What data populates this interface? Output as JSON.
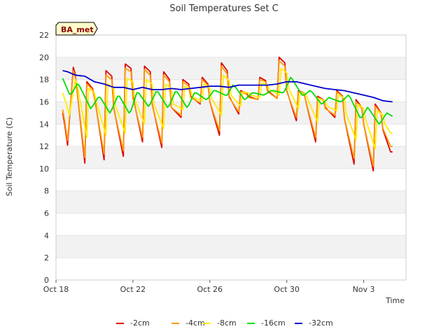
{
  "chart_data": {
    "type": "line",
    "title": "Soil Temperatures Set C",
    "xlabel": "Time",
    "ylabel": "Soil Temperature (C)",
    "badge": "BA_met",
    "ylim": [
      0,
      22
    ],
    "yticks": [
      0,
      2,
      4,
      6,
      8,
      10,
      12,
      14,
      16,
      18,
      20,
      22
    ],
    "xlim": [
      0,
      18.2
    ],
    "xticks": [
      {
        "value": 0,
        "label": "Oct 18"
      },
      {
        "value": 4,
        "label": "Oct 22"
      },
      {
        "value": 8,
        "label": "Oct 26"
      },
      {
        "value": 12,
        "label": "Oct 30"
      },
      {
        "value": 16,
        "label": "Nov 3"
      }
    ],
    "grid": "horizontal bands",
    "legend_position": "bottom",
    "series": [
      {
        "name": "-2cm",
        "color": "#dd0000",
        "x": [
          0.35,
          0.45,
          0.6,
          0.9,
          1.0,
          1.5,
          1.6,
          1.9,
          2.0,
          2.5,
          2.6,
          2.9,
          3.0,
          3.5,
          3.6,
          3.9,
          4.0,
          4.5,
          4.6,
          4.9,
          5.0,
          5.5,
          5.6,
          5.9,
          6.0,
          6.5,
          6.6,
          6.9,
          7.0,
          7.5,
          7.6,
          7.9,
          8.0,
          8.5,
          8.6,
          8.9,
          9.0,
          9.5,
          9.6,
          9.9,
          10.0,
          10.5,
          10.6,
          10.9,
          11.0,
          11.5,
          11.6,
          11.9,
          12.0,
          12.5,
          12.6,
          12.9,
          13.0,
          13.5,
          13.6,
          13.9,
          14.0,
          14.5,
          14.6,
          14.9,
          15.0,
          15.5,
          15.6,
          15.9,
          16.0,
          16.5,
          16.6,
          16.9,
          17.0,
          17.4,
          17.5
        ],
        "y": [
          15.0,
          14.0,
          12.1,
          19.1,
          18.5,
          10.5,
          17.8,
          17.2,
          16.5,
          10.8,
          18.8,
          18.3,
          15.5,
          11.1,
          19.4,
          19.0,
          16.5,
          12.4,
          19.2,
          18.7,
          15.8,
          11.9,
          18.7,
          18.0,
          15.5,
          14.6,
          18.0,
          17.6,
          16.5,
          15.8,
          18.2,
          17.6,
          16.0,
          13.0,
          19.5,
          18.8,
          16.5,
          14.9,
          17.0,
          16.8,
          16.5,
          16.2,
          18.2,
          17.9,
          17.0,
          16.3,
          20.0,
          19.5,
          17.0,
          14.3,
          17.0,
          16.8,
          16.0,
          12.4,
          16.5,
          16.2,
          15.5,
          14.6,
          17.0,
          16.5,
          14.5,
          10.4,
          16.2,
          15.5,
          14.0,
          9.8,
          15.8,
          15.0,
          13.5,
          11.5,
          11.5
        ]
      },
      {
        "name": "-4cm",
        "color": "#ff9900",
        "x": [
          0.35,
          0.45,
          0.6,
          0.9,
          1.0,
          1.5,
          1.6,
          1.9,
          2.0,
          2.5,
          2.6,
          2.9,
          3.0,
          3.5,
          3.6,
          3.9,
          4.0,
          4.5,
          4.6,
          4.9,
          5.0,
          5.5,
          5.6,
          5.9,
          6.0,
          6.5,
          6.6,
          6.9,
          7.0,
          7.5,
          7.6,
          7.9,
          8.0,
          8.5,
          8.6,
          8.9,
          9.0,
          9.5,
          9.6,
          9.9,
          10.0,
          10.5,
          10.6,
          10.9,
          11.0,
          11.5,
          11.6,
          11.9,
          12.0,
          12.5,
          12.6,
          12.9,
          13.0,
          13.5,
          13.6,
          13.9,
          14.0,
          14.5,
          14.6,
          14.9,
          15.0,
          15.5,
          15.6,
          15.9,
          16.0,
          16.5,
          16.6,
          16.9,
          17.0,
          17.4,
          17.5
        ],
        "y": [
          15.3,
          14.3,
          12.5,
          18.8,
          18.3,
          11.0,
          17.6,
          17.1,
          16.3,
          11.3,
          18.4,
          18.0,
          15.4,
          11.6,
          19.0,
          18.7,
          16.3,
          12.8,
          18.9,
          18.4,
          15.7,
          12.3,
          18.4,
          17.8,
          15.5,
          14.8,
          17.8,
          17.4,
          16.4,
          15.9,
          18.0,
          17.5,
          16.0,
          13.4,
          19.2,
          18.5,
          16.4,
          15.1,
          16.9,
          16.7,
          16.4,
          16.2,
          18.0,
          17.8,
          16.9,
          16.3,
          19.7,
          19.2,
          16.9,
          14.6,
          16.9,
          16.7,
          16.0,
          12.8,
          16.4,
          16.1,
          15.4,
          14.8,
          16.9,
          16.4,
          14.5,
          10.9,
          16.0,
          15.4,
          14.0,
          10.2,
          15.6,
          15.0,
          13.6,
          12.0,
          12.0
        ]
      },
      {
        "name": "-8cm",
        "color": "#ffee00",
        "x": [
          0.35,
          0.5,
          0.7,
          1.0,
          1.1,
          1.6,
          1.7,
          2.0,
          2.1,
          2.6,
          2.7,
          3.0,
          3.1,
          3.6,
          3.7,
          4.0,
          4.1,
          4.6,
          4.7,
          5.0,
          5.1,
          5.6,
          5.7,
          6.0,
          6.1,
          6.6,
          6.7,
          7.0,
          7.1,
          7.6,
          7.7,
          8.0,
          8.1,
          8.6,
          8.7,
          9.0,
          9.1,
          9.6,
          9.7,
          10.0,
          10.1,
          10.6,
          10.7,
          11.0,
          11.1,
          11.6,
          11.7,
          12.0,
          12.1,
          12.6,
          12.7,
          13.0,
          13.1,
          13.6,
          13.7,
          14.0,
          14.1,
          14.6,
          14.7,
          15.0,
          15.1,
          15.6,
          15.7,
          16.0,
          16.1,
          16.6,
          16.7,
          17.0,
          17.1,
          17.4,
          17.5
        ],
        "y": [
          16.8,
          16.0,
          14.8,
          18.0,
          17.6,
          12.8,
          17.2,
          16.8,
          16.0,
          13.0,
          17.6,
          17.2,
          15.6,
          13.2,
          18.1,
          17.8,
          16.2,
          14.0,
          18.0,
          17.6,
          15.8,
          13.6,
          17.6,
          17.2,
          15.8,
          15.3,
          17.4,
          17.1,
          16.4,
          16.1,
          17.6,
          17.2,
          16.3,
          14.8,
          18.4,
          17.9,
          16.6,
          15.6,
          16.9,
          16.8,
          16.6,
          16.4,
          17.7,
          17.5,
          17.1,
          16.6,
          19.0,
          18.6,
          17.2,
          15.4,
          16.9,
          16.7,
          16.2,
          14.2,
          16.3,
          16.1,
          15.6,
          15.2,
          16.7,
          16.3,
          14.9,
          12.6,
          15.8,
          15.4,
          14.4,
          11.8,
          15.2,
          14.8,
          14.0,
          13.2,
          13.2
        ]
      },
      {
        "name": "-16cm",
        "color": "#00dd00",
        "x": [
          0.35,
          0.7,
          0.8,
          1.1,
          1.2,
          1.8,
          1.9,
          2.2,
          2.3,
          2.8,
          2.9,
          3.2,
          3.3,
          3.8,
          3.9,
          4.2,
          4.3,
          4.8,
          4.9,
          5.2,
          5.3,
          5.8,
          5.9,
          6.2,
          6.3,
          6.8,
          6.9,
          7.2,
          7.3,
          7.8,
          7.9,
          8.2,
          8.3,
          8.8,
          8.9,
          9.2,
          9.3,
          9.8,
          9.9,
          10.2,
          10.3,
          10.8,
          10.9,
          11.2,
          11.3,
          11.8,
          11.9,
          12.2,
          12.3,
          12.8,
          12.9,
          13.2,
          13.3,
          13.8,
          13.9,
          14.2,
          14.3,
          14.8,
          14.9,
          15.2,
          15.3,
          15.8,
          15.9,
          16.2,
          16.3,
          16.8,
          16.9,
          17.2,
          17.3,
          17.5
        ],
        "y": [
          18.1,
          16.7,
          16.7,
          17.6,
          17.5,
          15.4,
          15.6,
          16.4,
          16.4,
          15.0,
          15.3,
          16.5,
          16.5,
          15.0,
          15.2,
          16.8,
          16.8,
          15.6,
          15.8,
          16.9,
          16.9,
          15.5,
          15.7,
          16.9,
          16.9,
          15.5,
          15.7,
          16.8,
          16.8,
          16.2,
          16.3,
          17.0,
          17.0,
          16.6,
          16.6,
          17.5,
          17.4,
          16.2,
          16.3,
          16.8,
          16.8,
          16.6,
          16.7,
          17.0,
          17.0,
          16.8,
          17.0,
          18.2,
          18.0,
          16.6,
          16.6,
          17.0,
          16.9,
          15.8,
          15.9,
          16.4,
          16.3,
          16.0,
          16.1,
          16.6,
          16.4,
          14.6,
          14.6,
          15.5,
          15.3,
          14.0,
          14.2,
          15.0,
          14.9,
          14.7
        ]
      },
      {
        "name": "-32cm",
        "color": "#0000cc",
        "x": [
          0.35,
          0.6,
          1.0,
          1.5,
          2.0,
          2.5,
          3.0,
          3.5,
          4.0,
          4.5,
          5.0,
          5.5,
          6.0,
          6.5,
          7.0,
          7.5,
          8.0,
          8.5,
          9.0,
          9.5,
          10.0,
          10.5,
          11.0,
          11.5,
          12.0,
          12.5,
          13.0,
          13.5,
          14.0,
          14.5,
          15.0,
          15.5,
          16.0,
          16.5,
          17.0,
          17.5
        ],
        "y": [
          18.8,
          18.7,
          18.4,
          18.3,
          17.8,
          17.6,
          17.3,
          17.3,
          17.1,
          17.3,
          17.1,
          17.1,
          17.2,
          17.1,
          17.2,
          17.3,
          17.4,
          17.4,
          17.3,
          17.5,
          17.5,
          17.5,
          17.5,
          17.6,
          17.8,
          17.8,
          17.6,
          17.4,
          17.2,
          17.1,
          17.0,
          16.8,
          16.6,
          16.4,
          16.1,
          16.0
        ]
      }
    ]
  }
}
